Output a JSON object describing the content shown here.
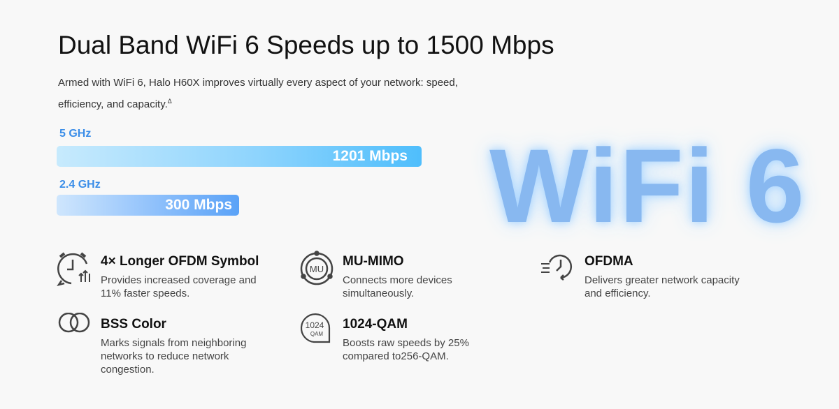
{
  "header": {
    "title": "Dual Band WiFi 6 Speeds up to 1500 Mbps",
    "intro": "Armed with WiFi 6, Halo H60X improves virtually every aspect of your network: speed, efficiency, and capacity.",
    "intro_mark": "Δ"
  },
  "bands": [
    {
      "label": "5 GHz",
      "value_label": "1201 Mbps",
      "value": 1201,
      "color": "#4fbefc"
    },
    {
      "label": "2.4 GHz",
      "value_label": "300 Mbps",
      "value": 300,
      "color": "#5aa2f7"
    }
  ],
  "logo": {
    "text": "WiFi 6",
    "color": "#7fb3f0"
  },
  "features": [
    {
      "icon": "alarm-clock-icon",
      "title": "4× Longer OFDM Symbol",
      "desc": "Provides increased coverage and 11% faster speeds."
    },
    {
      "icon": "mu-mimo-icon",
      "title": "MU-MIMO",
      "desc": "Connects more devices simultaneously."
    },
    {
      "icon": "ofdma-clock-icon",
      "title": "OFDMA",
      "desc": "Delivers greater network capacity and efficiency."
    },
    {
      "icon": "overlapping-circles-icon",
      "title": "BSS Color",
      "desc": "Marks signals from neighboring networks to reduce network congestion."
    },
    {
      "icon": "qam-badge-icon",
      "title": "1024-QAM",
      "desc": "Boosts raw speeds by 25% compared to256-QAM.",
      "badge_top": "1024",
      "badge_bottom": "QAM"
    }
  ]
}
